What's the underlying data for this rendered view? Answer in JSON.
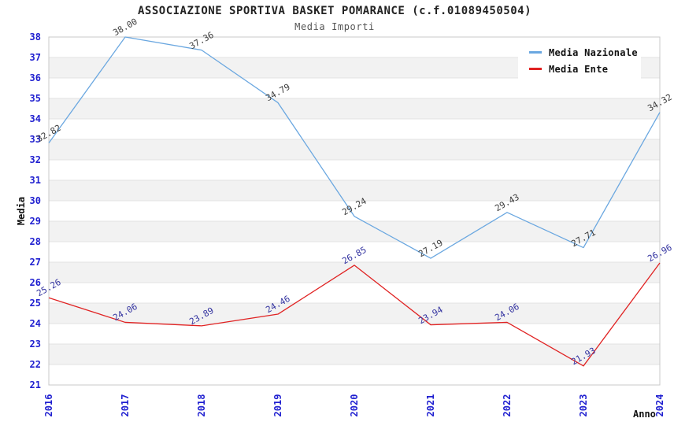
{
  "chart_data": {
    "type": "line",
    "title": "ASSOCIAZIONE SPORTIVA BASKET POMARANCE (c.f.01089450504)",
    "subtitle": "Media Importi",
    "xlabel": "Anno",
    "ylabel": "Media",
    "categories": [
      "2016",
      "2017",
      "2018",
      "2019",
      "2020",
      "2021",
      "2022",
      "2023",
      "2024"
    ],
    "series": [
      {
        "name": "Media Nazionale",
        "color": "#6aa7e0",
        "label_color": "#3c3c3c",
        "values": [
          32.82,
          38.0,
          37.36,
          34.79,
          29.24,
          27.19,
          29.43,
          27.71,
          34.32
        ]
      },
      {
        "name": "Media Ente",
        "color": "#e02222",
        "label_color": "#3333a0",
        "values": [
          25.26,
          24.06,
          23.89,
          24.46,
          26.85,
          23.94,
          24.06,
          21.93,
          26.96
        ]
      }
    ],
    "ylim": [
      21,
      38
    ],
    "ytick_step": 1,
    "grid": true,
    "legend_position": "top-right",
    "colors": {
      "tick_label": "#1f1fd0",
      "band": "#f2f2f2",
      "grid_line": "#e3e3e3",
      "plot_border": "#c8c8c8",
      "plot_background": "#ffffff"
    }
  }
}
